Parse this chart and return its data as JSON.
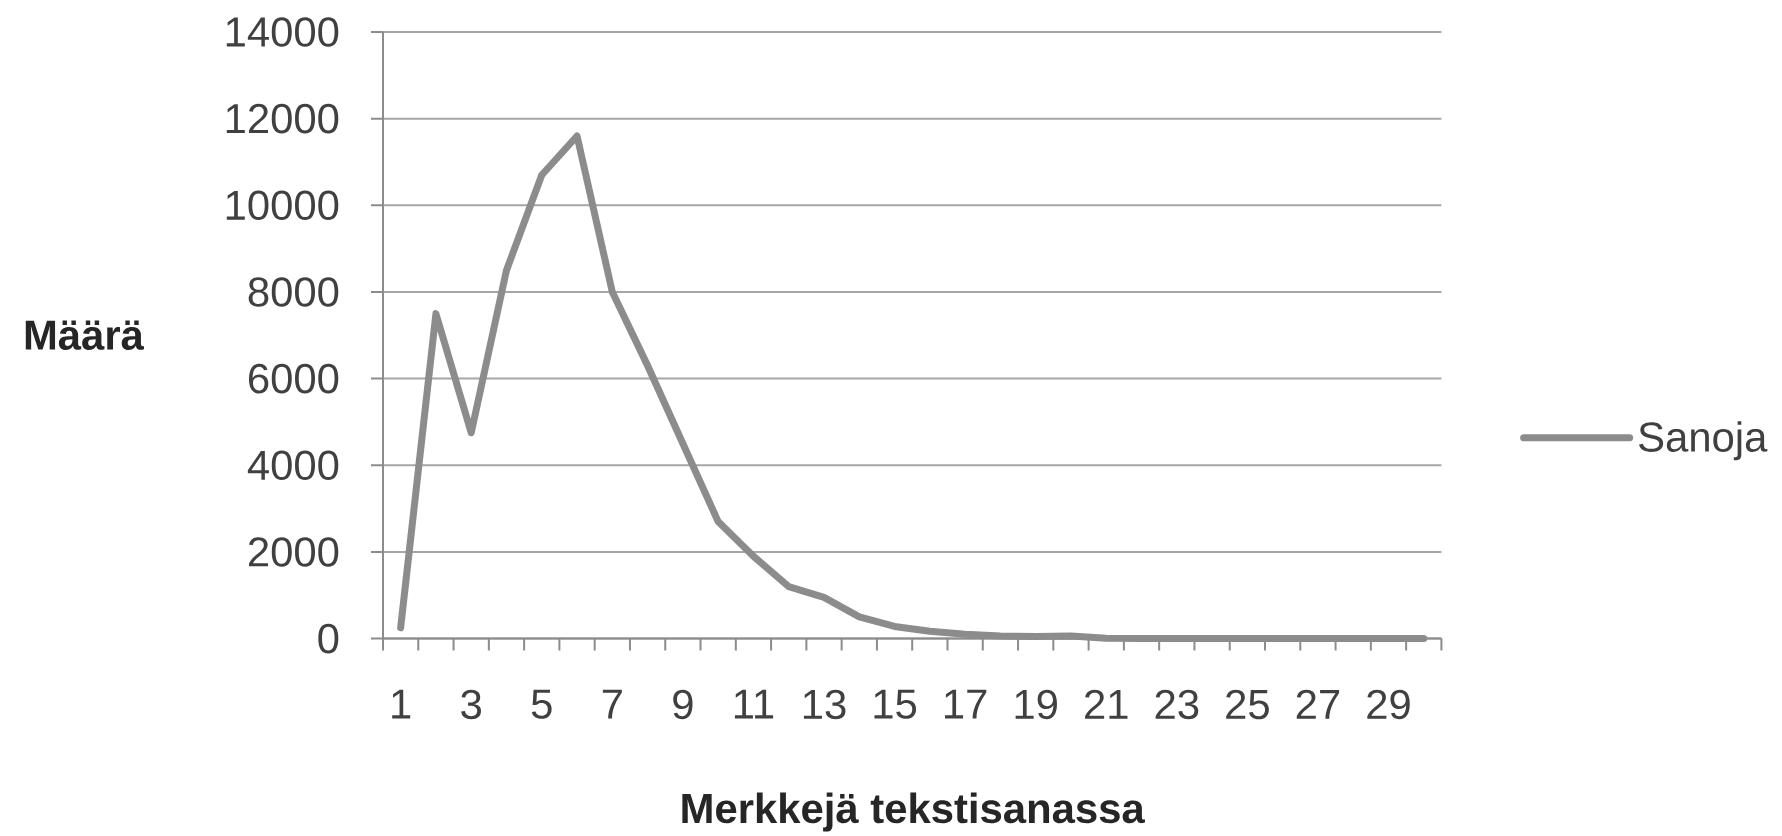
{
  "chart_data": {
    "type": "line",
    "xlabel": "Merkkejä tekstisanassa",
    "ylabel": "Määrä",
    "categories": [
      "1",
      null,
      "3",
      null,
      "5",
      null,
      "7",
      null,
      "9",
      null,
      "11",
      null,
      "13",
      null,
      "15",
      null,
      "17",
      null,
      "19",
      null,
      "21",
      null,
      "23",
      null,
      "25",
      null,
      "27",
      null,
      "29",
      null
    ],
    "series": [
      {
        "name": "Sanoja",
        "color": "#8c8c8c",
        "values": [
          250,
          7500,
          4750,
          8500,
          10700,
          11600,
          8000,
          6300,
          4500,
          2700,
          1900,
          1200,
          950,
          500,
          280,
          170,
          100,
          60,
          50,
          60,
          10,
          0,
          0,
          0,
          0,
          0,
          0,
          0,
          0,
          0
        ]
      }
    ],
    "ylim": [
      0,
      14000
    ],
    "yticks": [
      0,
      2000,
      4000,
      6000,
      8000,
      10000,
      12000,
      14000
    ],
    "grid": "y",
    "legend": "right",
    "line_style": "solid"
  }
}
